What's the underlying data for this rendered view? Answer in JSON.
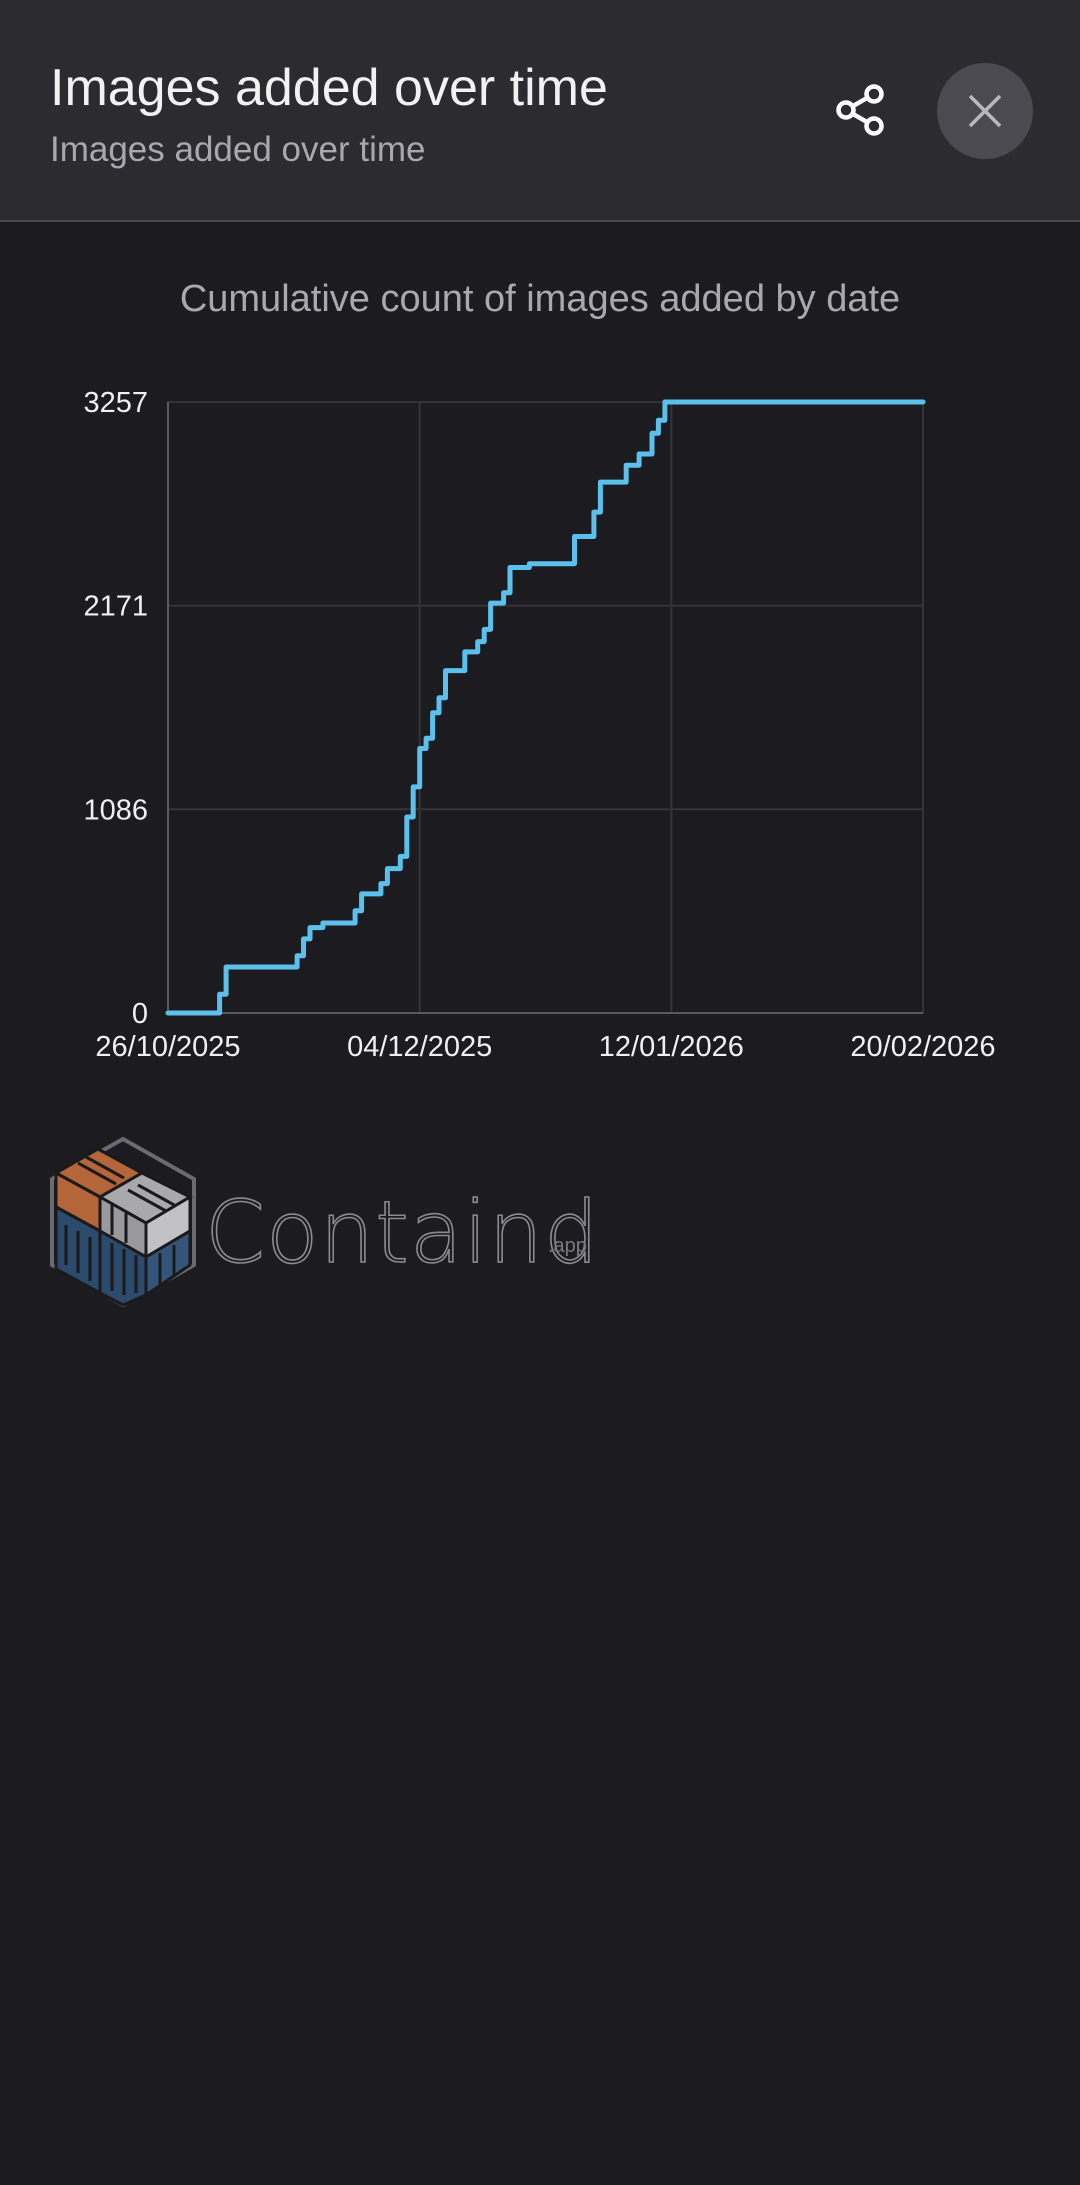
{
  "header": {
    "title": "Images added over time",
    "subtitle": "Images added over time",
    "share_icon": "share-icon",
    "close_icon": "close-icon"
  },
  "chart_title": "Cumulative count of images added by date",
  "chart_data": {
    "type": "line",
    "title": "Cumulative count of images added by date",
    "xlabel": "",
    "ylabel": "",
    "x_tick_labels": [
      "26/10/2025",
      "04/12/2025",
      "12/01/2026",
      "20/02/2026"
    ],
    "y_tick_labels": [
      "0",
      "1086",
      "2171",
      "3257"
    ],
    "ylim": [
      0,
      3257
    ],
    "xlim": [
      "26/10/2025",
      "20/02/2026"
    ],
    "grid": true,
    "line_color": "#5bc0eb",
    "series": [
      {
        "points": [
          [
            "26/10/2025",
            0
          ],
          [
            "03/11/2025",
            0
          ],
          [
            "03/11/2025",
            100
          ],
          [
            "04/11/2025",
            100
          ],
          [
            "04/11/2025",
            245
          ],
          [
            "15/11/2025",
            245
          ],
          [
            "15/11/2025",
            305
          ],
          [
            "16/11/2025",
            305
          ],
          [
            "16/11/2025",
            395
          ],
          [
            "17/11/2025",
            395
          ],
          [
            "17/11/2025",
            455
          ],
          [
            "19/11/2025",
            455
          ],
          [
            "19/11/2025",
            480
          ],
          [
            "24/11/2025",
            480
          ],
          [
            "24/11/2025",
            545
          ],
          [
            "25/11/2025",
            545
          ],
          [
            "25/11/2025",
            635
          ],
          [
            "28/11/2025",
            635
          ],
          [
            "28/11/2025",
            690
          ],
          [
            "29/11/2025",
            690
          ],
          [
            "29/11/2025",
            770
          ],
          [
            "01/12/2025",
            770
          ],
          [
            "01/12/2025",
            835
          ],
          [
            "02/12/2025",
            835
          ],
          [
            "02/12/2025",
            1045
          ],
          [
            "03/12/2025",
            1045
          ],
          [
            "03/12/2025",
            1205
          ],
          [
            "04/12/2025",
            1205
          ],
          [
            "04/12/2025",
            1410
          ],
          [
            "05/12/2025",
            1410
          ],
          [
            "05/12/2025",
            1465
          ],
          [
            "06/12/2025",
            1465
          ],
          [
            "06/12/2025",
            1600
          ],
          [
            "07/12/2025",
            1600
          ],
          [
            "07/12/2025",
            1680
          ],
          [
            "08/12/2025",
            1680
          ],
          [
            "08/12/2025",
            1825
          ],
          [
            "11/12/2025",
            1825
          ],
          [
            "11/12/2025",
            1925
          ],
          [
            "13/12/2025",
            1925
          ],
          [
            "13/12/2025",
            1980
          ],
          [
            "14/12/2025",
            1980
          ],
          [
            "14/12/2025",
            2045
          ],
          [
            "15/12/2025",
            2045
          ],
          [
            "15/12/2025",
            2185
          ],
          [
            "17/12/2025",
            2185
          ],
          [
            "17/12/2025",
            2240
          ],
          [
            "18/12/2025",
            2240
          ],
          [
            "18/12/2025",
            2375
          ],
          [
            "21/12/2025",
            2375
          ],
          [
            "21/12/2025",
            2395
          ],
          [
            "28/12/2025",
            2395
          ],
          [
            "28/12/2025",
            2540
          ],
          [
            "31/12/2025",
            2540
          ],
          [
            "31/12/2025",
            2670
          ],
          [
            "01/01/2026",
            2670
          ],
          [
            "01/01/2026",
            2830
          ],
          [
            "05/01/2026",
            2830
          ],
          [
            "05/01/2026",
            2920
          ],
          [
            "07/01/2026",
            2920
          ],
          [
            "07/01/2026",
            2980
          ],
          [
            "09/01/2026",
            2980
          ],
          [
            "09/01/2026",
            3090
          ],
          [
            "10/01/2026",
            3090
          ],
          [
            "10/01/2026",
            3160
          ],
          [
            "11/01/2026",
            3160
          ],
          [
            "11/01/2026",
            3257
          ],
          [
            "20/02/2026",
            3257
          ]
        ]
      }
    ]
  },
  "logo": {
    "text": "Containd",
    "suffix": ".app",
    "colors": [
      "#b5653a",
      "#a9a9ad",
      "#2c4a6b"
    ]
  },
  "colors": {
    "background": "#1c1c20",
    "header": "#2b2b30",
    "accent": "#5bc0eb"
  }
}
